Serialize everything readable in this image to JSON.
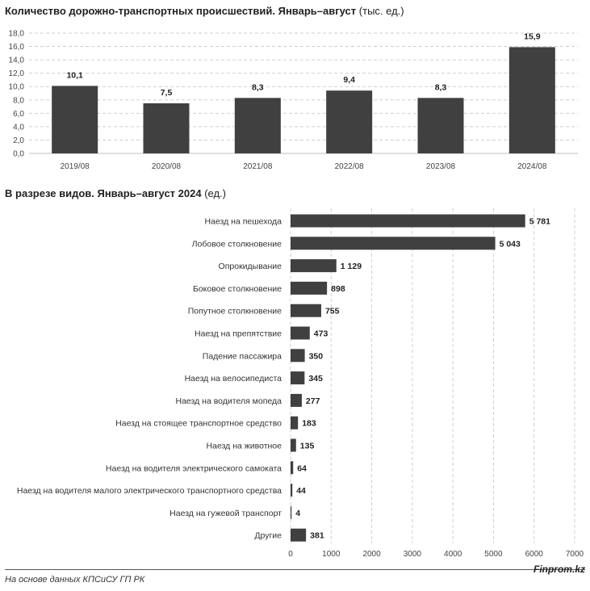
{
  "chart_data": [
    {
      "type": "bar",
      "title": "Количество дорожно-транспортных происшествий. Январь–август",
      "unit": "(тыс. ед.)",
      "categories": [
        "2019/08",
        "2020/08",
        "2021/08",
        "2022/08",
        "2023/08",
        "2024/08"
      ],
      "values": [
        10.1,
        7.5,
        8.3,
        9.4,
        8.3,
        15.9
      ],
      "value_labels": [
        "10,1",
        "7,5",
        "8,3",
        "9,4",
        "8,3",
        "15,9"
      ],
      "ylim": [
        0,
        18
      ],
      "yticks": [
        "0,0",
        "2,0",
        "4,0",
        "6,0",
        "8,0",
        "10,0",
        "12,0",
        "14,0",
        "16,0",
        "18,0"
      ],
      "bar_color": "#404040",
      "grid": true
    },
    {
      "type": "bar",
      "orientation": "horizontal",
      "title": "В разрезе видов. Январь–август 2024",
      "unit": "(ед.)",
      "categories": [
        "Наезд на пешехода",
        "Лобовое столкновение",
        "Опрокидывание",
        "Боковое столкновение",
        "Попутное столкновение",
        "Наезд на препятствие",
        "Падение пассажира",
        "Наезд на велосипедиста",
        "Наезд на водителя мопеда",
        "Наезд на стоящее транспортное средство",
        "Наезд на животное",
        "Наезд на водителя электрического самоката",
        "Наезд на водителя малого электрического транспортного средства",
        "Наезд на гужевой транспорт",
        "Другие"
      ],
      "values": [
        5781,
        5043,
        1129,
        898,
        755,
        473,
        350,
        345,
        277,
        183,
        135,
        64,
        44,
        4,
        381
      ],
      "value_labels": [
        "5 781",
        "5 043",
        "1 129",
        "898",
        "755",
        "473",
        "350",
        "345",
        "277",
        "183",
        "135",
        "64",
        "44",
        "4",
        "381"
      ],
      "xlim": [
        0,
        7000
      ],
      "xticks": [
        "0",
        "1000",
        "2000",
        "3000",
        "4000",
        "5000",
        "6000",
        "7000"
      ],
      "bar_color": "#404040",
      "grid": true
    }
  ],
  "footer": {
    "source": "На основе данных КПСиСУ ГП РК",
    "brand": "Finprom.kz"
  }
}
